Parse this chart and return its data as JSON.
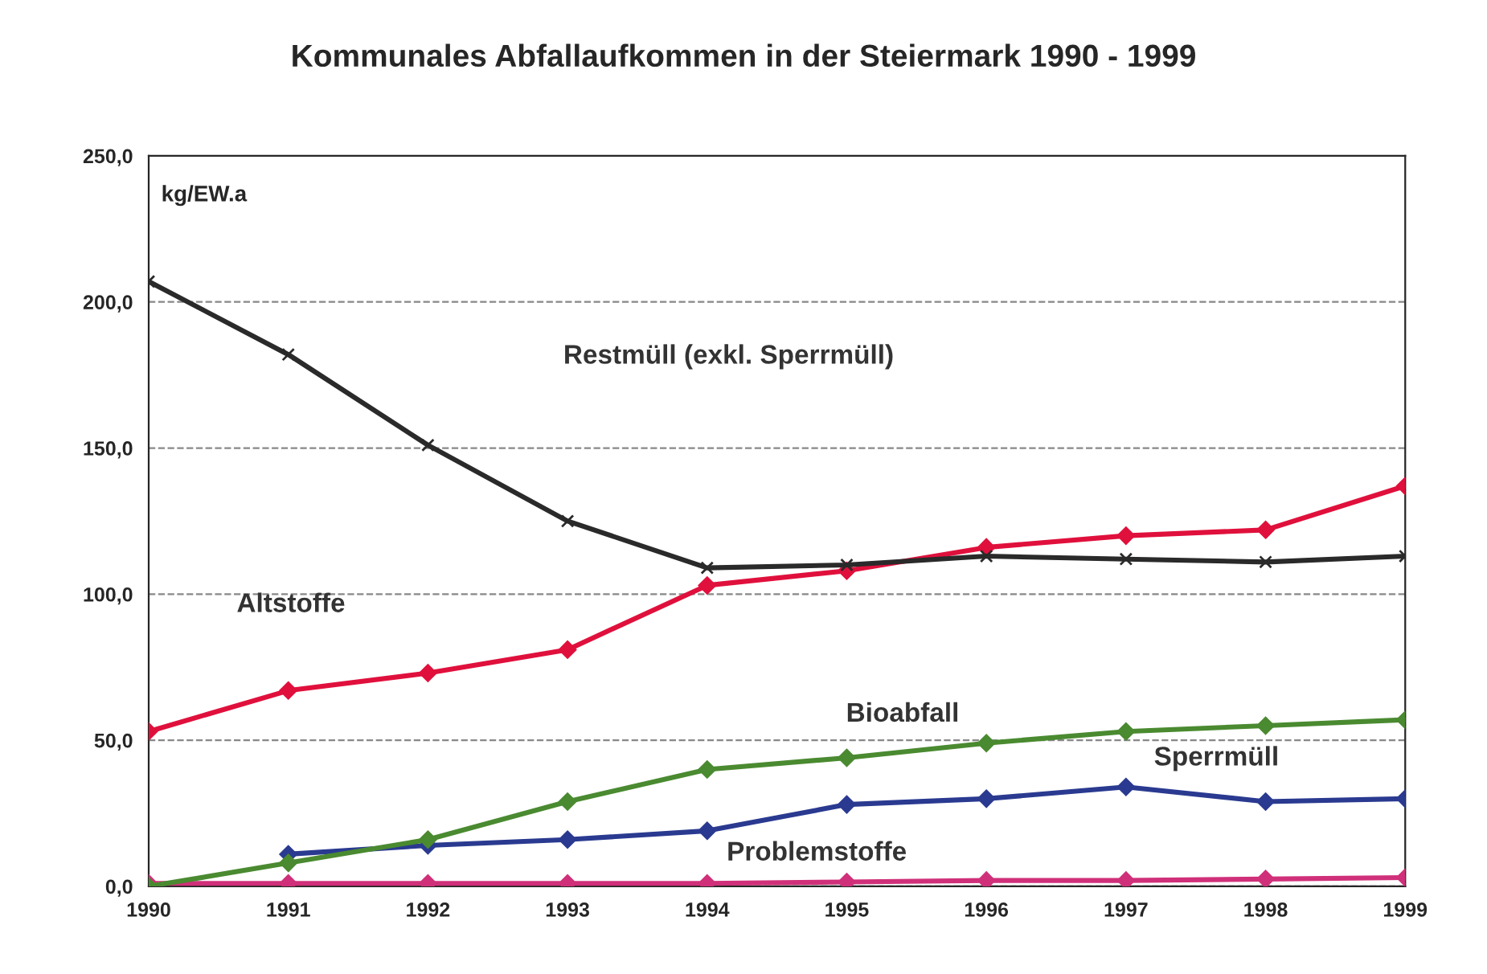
{
  "chart_data": {
    "type": "line",
    "title": "Kommunales Abfallaufkommen in der Steiermark 1990 - 1999",
    "ylabel": "kg/EW.a",
    "x": [
      1990,
      1991,
      1992,
      1993,
      1994,
      1995,
      1996,
      1997,
      1998,
      1999
    ],
    "series": [
      {
        "color": "#2a2a2a",
        "marker": "cross",
        "values": [
          207,
          182,
          151,
          125,
          109,
          110,
          113,
          112,
          111,
          113
        ]
      },
      {
        "color": "#e0103c",
        "marker": "diamond",
        "values": [
          53,
          67,
          73,
          81,
          103,
          108,
          116,
          120,
          122,
          137
        ]
      },
      {
        "color": "#4a8a30",
        "marker": "diamond",
        "values": [
          0,
          8,
          16,
          29,
          40,
          44,
          49,
          53,
          55,
          57
        ]
      },
      {
        "color": "#2a3a90",
        "marker": "diamond",
        "values": [
          null,
          11,
          14,
          16,
          19,
          28,
          30,
          34,
          29,
          30
        ]
      },
      {
        "color": "#d0307a",
        "marker": "diamond",
        "values": [
          1,
          1,
          1,
          1,
          1,
          1.5,
          2,
          2,
          2.5,
          3
        ]
      }
    ],
    "annotations": [
      "Restmüll (exkl. Sperrmüll)",
      "Altstoffe",
      "Bioabfall",
      "Sperrmüll",
      "Problemstoffe"
    ],
    "xlim": [
      1990,
      1999
    ],
    "xticks": [
      1990,
      1991,
      1992,
      1993,
      1994,
      1995,
      1996,
      1997,
      1998,
      1999
    ],
    "ylim": [
      0,
      250
    ],
    "yticks": [
      {
        "value": 0,
        "label": "0,0"
      },
      {
        "value": 50,
        "label": "50,0"
      },
      {
        "value": 100,
        "label": "100,0"
      },
      {
        "value": 150,
        "label": "150,0"
      },
      {
        "value": 200,
        "label": "200,0"
      },
      {
        "value": 250,
        "label": "250,0"
      }
    ],
    "grid": "y",
    "line_style": "solid"
  }
}
